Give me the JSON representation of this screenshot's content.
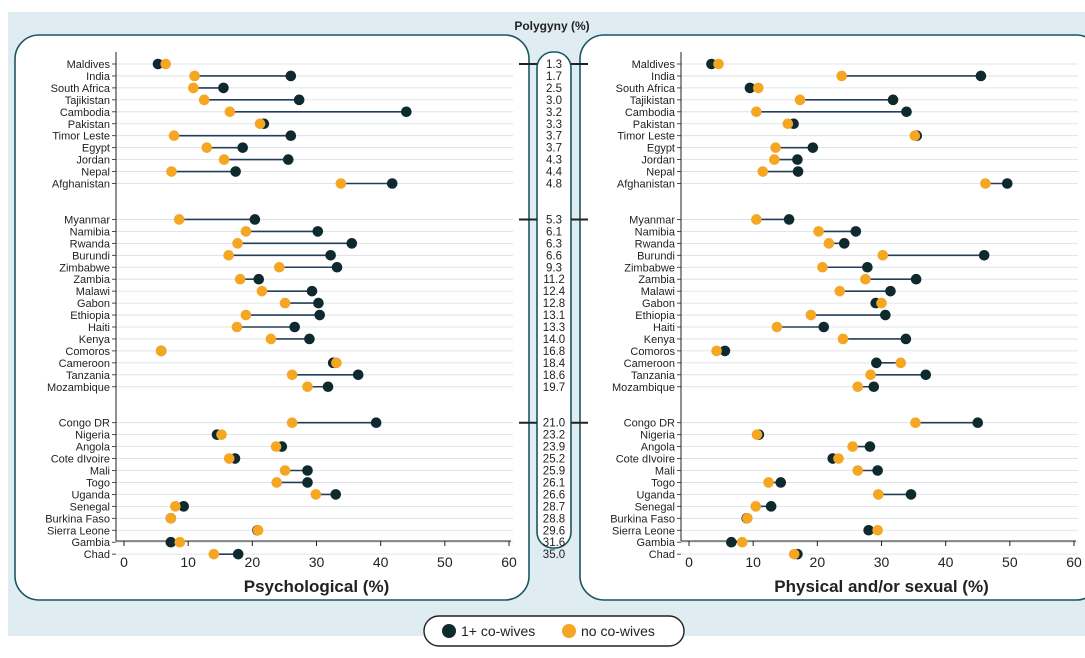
{
  "chart_data": {
    "type": "dumbbell",
    "title": "Polygyny (%)",
    "legend": {
      "placement": "bottom-center",
      "items": [
        {
          "label": "1+ co-wives",
          "color": "#0f2a2e"
        },
        {
          "label": "no co-wives",
          "color": "#f5a623"
        }
      ]
    },
    "colors": {
      "co_wives": "#0f2a2e",
      "no_co_wives": "#f5a623",
      "line": "#233e5a",
      "frame": "#1d5561",
      "background": "#dfedf3"
    },
    "countries": [
      "Maldives",
      "India",
      "South Africa",
      "Tajikistan",
      "Cambodia",
      "Pakistan",
      "Timor Leste",
      "Egypt",
      "Jordan",
      "Nepal",
      "Afghanistan",
      "Myanmar",
      "Namibia",
      "Rwanda",
      "Burundi",
      "Zimbabwe",
      "Zambia",
      "Malawi",
      "Gabon",
      "Ethiopia",
      "Haiti",
      "Kenya",
      "Comoros",
      "Cameroon",
      "Tanzania",
      "Mozambique",
      "Congo DR",
      "Nigeria",
      "Angola",
      "Cote dIvoire",
      "Mali",
      "Togo",
      "Uganda",
      "Senegal",
      "Burkina Faso",
      "Sierra Leone",
      "Gambia",
      "Chad"
    ],
    "group_sizes": [
      11,
      15,
      12
    ],
    "polygyny": [
      "1.3",
      "1.7",
      "2.5",
      "3.0",
      "3.2",
      "3.3",
      "3.7",
      "3.7",
      "4.3",
      "4.4",
      "4.8",
      "5.3",
      "6.1",
      "6.3",
      "6.6",
      "9.3",
      "11.2",
      "12.4",
      "12.8",
      "13.1",
      "13.3",
      "14.0",
      "16.8",
      "18.4",
      "18.6",
      "19.7",
      "21.0",
      "23.2",
      "23.9",
      "25.2",
      "25.9",
      "26.1",
      "26.6",
      "28.7",
      "28.8",
      "29.6",
      "31.6",
      "35.0"
    ],
    "panels": [
      {
        "xlabel": "Psychological (%)",
        "xlim": [
          0,
          60
        ],
        "xticks": [
          0,
          10,
          20,
          30,
          40,
          50,
          60
        ],
        "series": [
          {
            "name": "1+ co-wives",
            "values": [
              5.3,
              26,
              15.5,
              27.3,
              44,
              21.8,
              26,
              18.5,
              25.6,
              17.4,
              41.8,
              20.4,
              30.2,
              35.5,
              32.2,
              33.2,
              21,
              29.3,
              30.3,
              30.5,
              26.6,
              28.9,
              5.8,
              32.6,
              36.5,
              31.8,
              39.3,
              14.5,
              24.6,
              17.3,
              28.6,
              28.6,
              33,
              9.3,
              7.3,
              20.8,
              7.3,
              17.8
            ]
          },
          {
            "name": "no co-wives",
            "values": [
              6.5,
              11,
              10.8,
              12.5,
              16.5,
              21.2,
              7.8,
              12.9,
              15.6,
              7.4,
              33.8,
              8.6,
              19,
              17.7,
              16.3,
              24.2,
              18.1,
              21.5,
              25.1,
              19,
              17.6,
              22.9,
              5.8,
              33.1,
              26.2,
              28.6,
              26.2,
              15.2,
              23.7,
              16.4,
              25.1,
              23.8,
              29.9,
              8,
              7.3,
              20.9,
              8.7,
              14
            ]
          }
        ]
      },
      {
        "xlabel": "Physical and/or sexual (%)",
        "xlim": [
          0,
          60
        ],
        "xticks": [
          0,
          10,
          20,
          30,
          40,
          50,
          60
        ],
        "series": [
          {
            "name": "1+ co-wives",
            "values": [
              3.5,
              45.5,
              9.5,
              31.8,
              33.9,
              16.3,
              35.5,
              19.3,
              16.9,
              17,
              49.6,
              15.6,
              26,
              24.2,
              46,
              27.8,
              35.4,
              31.4,
              29.1,
              30.6,
              21,
              33.8,
              5.6,
              29.2,
              36.9,
              28.8,
              45,
              10.9,
              28.2,
              22.4,
              29.4,
              14.3,
              34.6,
              12.8,
              9,
              28,
              6.6,
              16.9
            ]
          },
          {
            "name": "no co-wives",
            "values": [
              4.6,
              23.8,
              10.8,
              17.3,
              10.5,
              15.4,
              35.2,
              13.5,
              13.3,
              11.5,
              46.2,
              10.5,
              20.2,
              21.8,
              30.2,
              20.8,
              27.5,
              23.5,
              30,
              19,
              13.7,
              24,
              4.3,
              33,
              28.3,
              26.3,
              35.3,
              10.6,
              25.5,
              23.3,
              26.3,
              12.4,
              29.5,
              10.4,
              9.1,
              29.4,
              8.3,
              16.4
            ]
          }
        ]
      }
    ]
  }
}
